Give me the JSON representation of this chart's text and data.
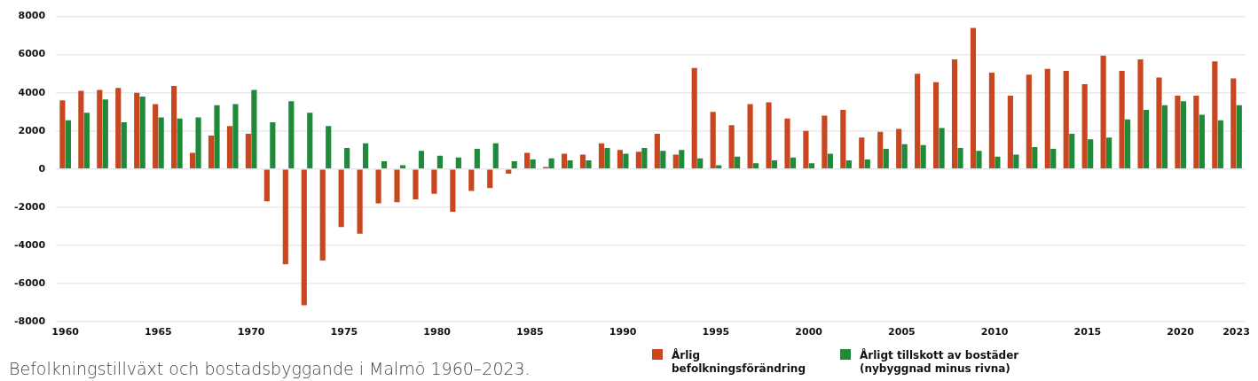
{
  "chart_data": {
    "type": "bar",
    "title": "Befolkningstillväxt och bostadsbyggande i Malmö 1960–2023.",
    "categories": [
      "1960",
      null,
      null,
      null,
      null,
      "1965",
      null,
      null,
      null,
      null,
      "1970",
      null,
      null,
      null,
      null,
      "1975",
      null,
      null,
      null,
      null,
      "1980",
      null,
      null,
      null,
      null,
      "1985",
      null,
      null,
      null,
      null,
      "1990",
      null,
      null,
      null,
      null,
      "1995",
      null,
      null,
      null,
      null,
      "2000",
      null,
      null,
      null,
      null,
      "2005",
      null,
      null,
      null,
      null,
      "2010",
      null,
      null,
      null,
      null,
      "2015",
      null,
      null,
      null,
      null,
      "2020",
      null,
      null,
      "2023"
    ],
    "series": [
      {
        "name": "Årlig befolkningsförändring",
        "color": "#c9471f",
        "values": [
          3600,
          4100,
          4150,
          4250,
          4000,
          3400,
          4350,
          850,
          1750,
          2250,
          1850,
          -1700,
          -5000,
          -7150,
          -4800,
          -3050,
          -3400,
          -1800,
          -1750,
          -1600,
          -1300,
          -2250,
          -1150,
          -1000,
          -250,
          850,
          100,
          800,
          750,
          1350,
          1000,
          900,
          1850,
          750,
          5300,
          3000,
          2300,
          3400,
          3500,
          2650,
          2000,
          2800,
          3100,
          1650,
          1950,
          2100,
          5000,
          4550,
          5750,
          7400,
          5050,
          3850,
          4950,
          5250,
          5150,
          4450,
          5950,
          5150,
          5750,
          4800,
          3850,
          3850,
          5650,
          4750
        ]
      },
      {
        "name": "Årligt tillskott av bostäder (nybyggnad minus rivna)",
        "color": "#1e8a3a",
        "values": [
          2550,
          2950,
          3650,
          2450,
          3800,
          2700,
          2650,
          2700,
          3350,
          3400,
          4150,
          2450,
          3550,
          2950,
          2250,
          1100,
          1350,
          400,
          200,
          950,
          700,
          600,
          1050,
          1350,
          400,
          500,
          550,
          450,
          450,
          1100,
          800,
          1100,
          950,
          1000,
          550,
          200,
          650,
          300,
          450,
          600,
          300,
          800,
          450,
          500,
          1050,
          1300,
          1250,
          2150,
          1100,
          950,
          650,
          750,
          1150,
          1050,
          1850,
          1550,
          1650,
          2600,
          3100,
          3350,
          3550,
          2850,
          2550,
          3350
        ]
      }
    ],
    "ylim": [
      -8000,
      8000
    ],
    "yticks": [
      -8000,
      -6000,
      -4000,
      -2000,
      0,
      2000,
      4000,
      6000,
      8000
    ],
    "grid": "y",
    "legend": "bottom right"
  }
}
